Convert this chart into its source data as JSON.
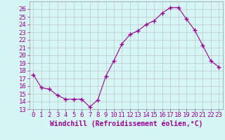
{
  "x": [
    0,
    1,
    2,
    3,
    4,
    5,
    6,
    7,
    8,
    9,
    10,
    11,
    12,
    13,
    14,
    15,
    16,
    17,
    18,
    19,
    20,
    21,
    22,
    23
  ],
  "y": [
    17.5,
    15.8,
    15.6,
    14.8,
    14.3,
    14.3,
    14.3,
    13.3,
    14.2,
    17.3,
    19.3,
    21.5,
    22.7,
    23.2,
    24.0,
    24.5,
    25.5,
    26.2,
    26.2,
    24.7,
    23.3,
    21.3,
    19.3,
    18.5
  ],
  "line_color": "#990099",
  "marker": "+",
  "bg_color": "#d6f5f5",
  "grid_color": "#bbbbbb",
  "xlabel": "Windchill (Refroidissement éolien,°C)",
  "ylim": [
    13,
    27
  ],
  "xlim": [
    -0.5,
    23.5
  ],
  "yticks": [
    13,
    14,
    15,
    16,
    17,
    18,
    19,
    20,
    21,
    22,
    23,
    24,
    25,
    26
  ],
  "xticks": [
    0,
    1,
    2,
    3,
    4,
    5,
    6,
    7,
    8,
    9,
    10,
    11,
    12,
    13,
    14,
    15,
    16,
    17,
    18,
    19,
    20,
    21,
    22,
    23
  ],
  "tick_color": "#990099",
  "label_color": "#990099",
  "font_size": 6.5,
  "xlabel_size": 7,
  "marker_size": 4,
  "lw": 0.8
}
